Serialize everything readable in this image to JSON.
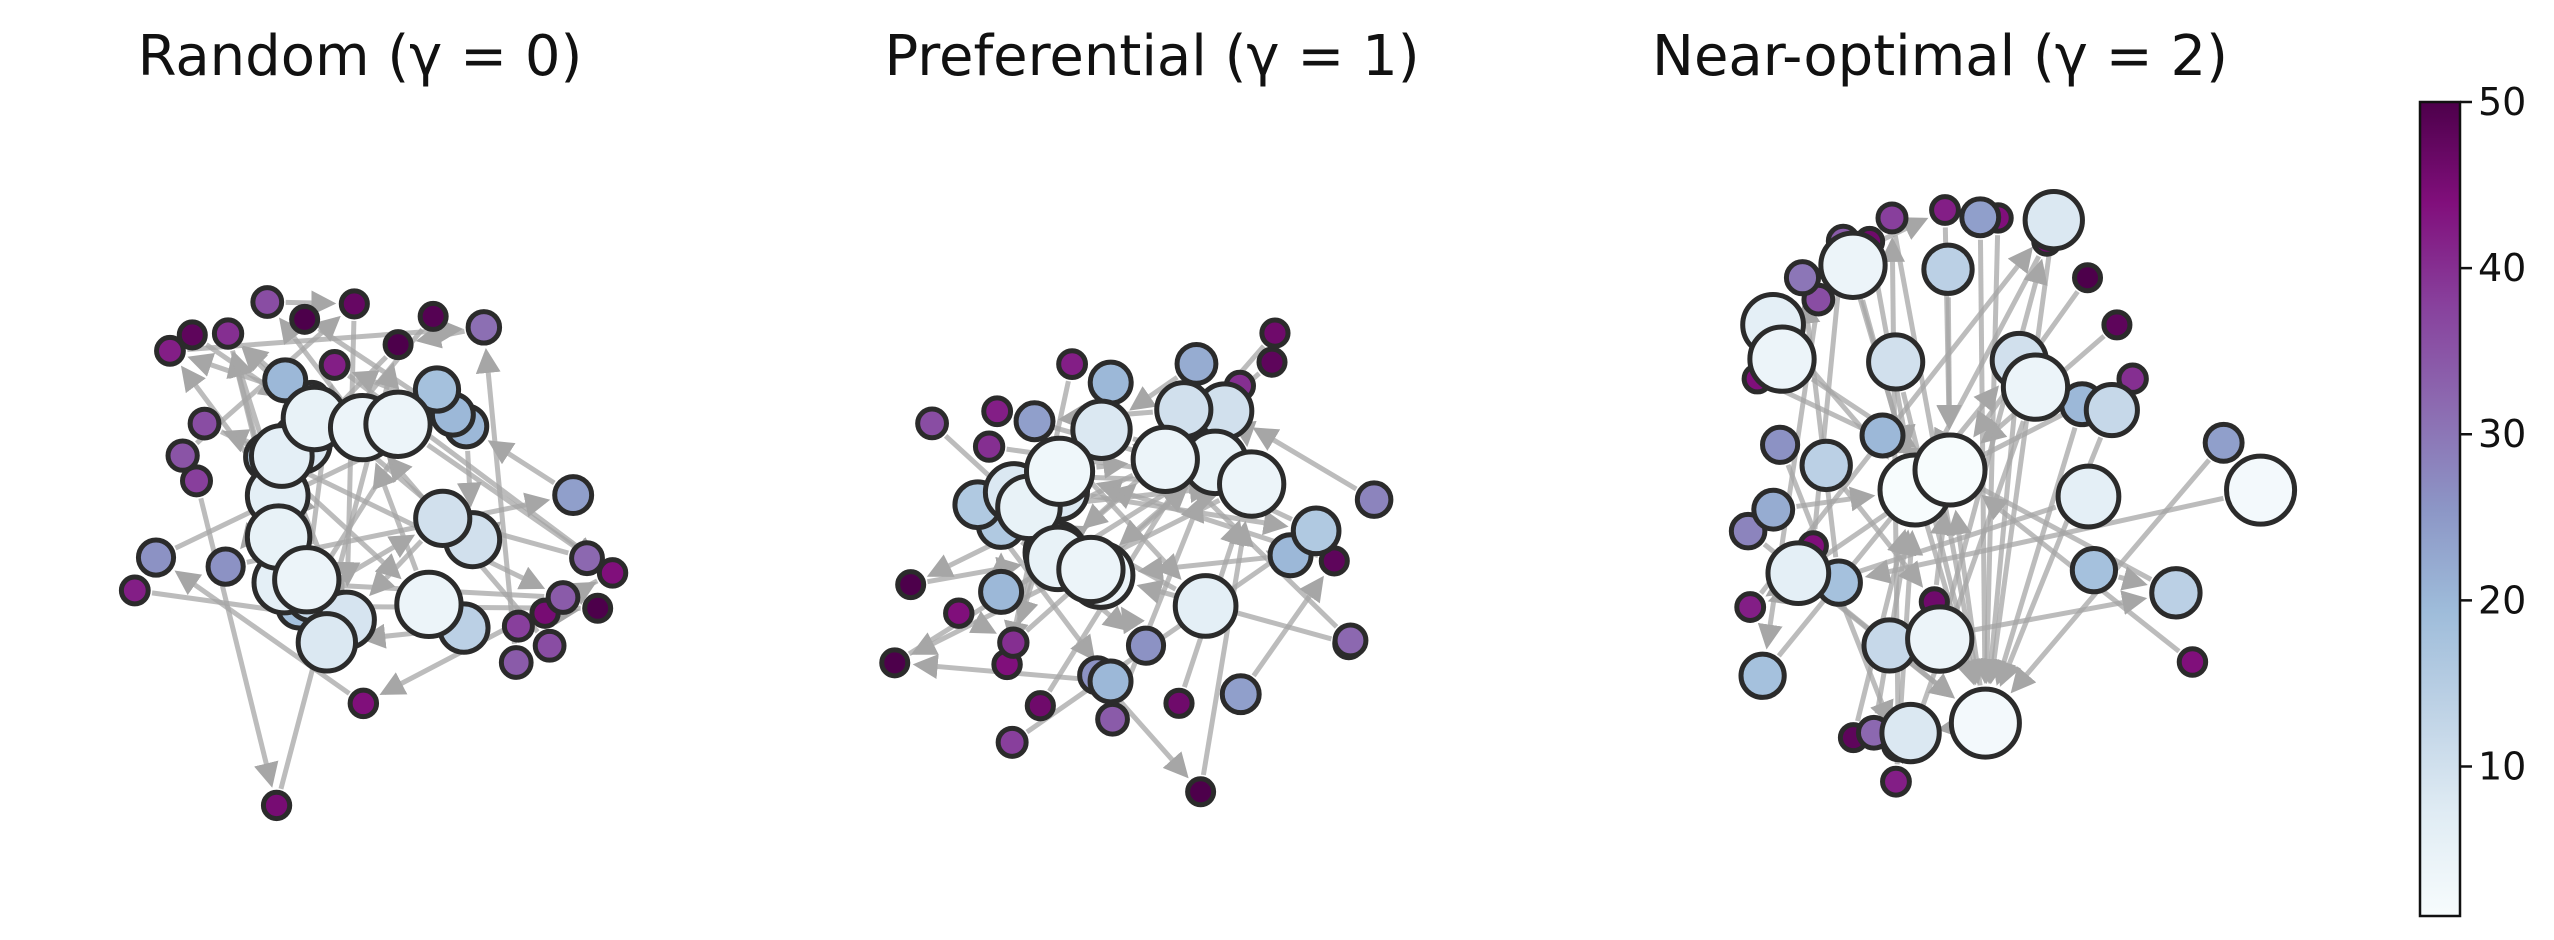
{
  "panels": [
    {
      "title": "Random (γ = 0)",
      "nodes": [
        {
          "v": 50
        },
        {
          "v": 47
        },
        {
          "v": 49
        },
        {
          "v": 44
        },
        {
          "v": 9
        },
        {
          "v": 36
        },
        {
          "v": 50
        },
        {
          "v": 4
        },
        {
          "v": 28
        },
        {
          "v": 31
        },
        {
          "v": 12
        },
        {
          "v": 26
        },
        {
          "v": 20
        },
        {
          "v": 6
        },
        {
          "v": 4
        },
        {
          "v": 42
        },
        {
          "v": 36
        },
        {
          "v": 4
        },
        {
          "v": 6
        },
        {
          "v": 8
        },
        {
          "v": 14
        },
        {
          "v": 34
        },
        {
          "v": 18
        },
        {
          "v": 24
        },
        {
          "v": 20
        },
        {
          "v": 5
        },
        {
          "v": 4
        },
        {
          "v": 8
        },
        {
          "v": 26
        },
        {
          "v": 44
        },
        {
          "v": 35
        },
        {
          "v": 16
        },
        {
          "v": 10
        },
        {
          "v": 32
        },
        {
          "v": 5
        },
        {
          "v": 6
        },
        {
          "v": 38
        },
        {
          "v": 48
        },
        {
          "v": 34
        },
        {
          "v": 20
        },
        {
          "v": 45
        },
        {
          "v": 40
        },
        {
          "v": 10
        },
        {
          "v": 42
        },
        {
          "v": 18
        },
        {
          "v": 45
        },
        {
          "v": 36
        },
        {
          "v": 42
        },
        {
          "v": 38
        },
        {
          "v": 50
        }
      ]
    },
    {
      "title": "Preferential (γ = 1)",
      "nodes": [
        {
          "v": 32
        },
        {
          "v": 20
        },
        {
          "v": 4
        },
        {
          "v": 44
        },
        {
          "v": 34
        },
        {
          "v": 28
        },
        {
          "v": 50
        },
        {
          "v": 40
        },
        {
          "v": 38
        },
        {
          "v": 8
        },
        {
          "v": 5
        },
        {
          "v": 20
        },
        {
          "v": 14
        },
        {
          "v": 38
        },
        {
          "v": 48
        },
        {
          "v": 8
        },
        {
          "v": 26
        },
        {
          "v": 3
        },
        {
          "v": 16
        },
        {
          "v": 6
        },
        {
          "v": 4
        },
        {
          "v": 46
        },
        {
          "v": 40
        },
        {
          "v": 10
        },
        {
          "v": 5
        },
        {
          "v": 4
        },
        {
          "v": 20
        },
        {
          "v": 22
        },
        {
          "v": 50
        },
        {
          "v": 16
        },
        {
          "v": 42
        },
        {
          "v": 24
        },
        {
          "v": 6
        },
        {
          "v": 16
        },
        {
          "v": 4
        },
        {
          "v": 36
        },
        {
          "v": 46
        },
        {
          "v": 8
        },
        {
          "v": 42
        },
        {
          "v": 5
        },
        {
          "v": 48
        },
        {
          "v": 14
        },
        {
          "v": 10
        },
        {
          "v": 24
        },
        {
          "v": 40
        },
        {
          "v": 44
        },
        {
          "v": 20
        },
        {
          "v": 50
        },
        {
          "v": 46
        },
        {
          "v": 26
        }
      ]
    },
    {
      "title": "Near-optimal (γ = 2)",
      "nodes": [
        {
          "v": 44
        },
        {
          "v": 6
        },
        {
          "v": 30
        },
        {
          "v": 34
        },
        {
          "v": 38
        },
        {
          "v": 42
        },
        {
          "v": 44
        },
        {
          "v": 46
        },
        {
          "v": 50
        },
        {
          "v": 48
        },
        {
          "v": 40
        },
        {
          "v": 28
        },
        {
          "v": 36
        },
        {
          "v": 18
        },
        {
          "v": 22
        },
        {
          "v": 32
        },
        {
          "v": 42
        },
        {
          "v": 4
        },
        {
          "v": 12
        },
        {
          "v": 24
        },
        {
          "v": 8
        },
        {
          "v": 1
        },
        {
          "v": 1
        },
        {
          "v": 46
        },
        {
          "v": 44
        },
        {
          "v": 34
        },
        {
          "v": 20
        },
        {
          "v": 46
        },
        {
          "v": 4
        },
        {
          "v": 42
        },
        {
          "v": 10
        },
        {
          "v": 18
        },
        {
          "v": 2
        },
        {
          "v": 44
        },
        {
          "v": 14
        },
        {
          "v": 6
        },
        {
          "v": 4
        },
        {
          "v": 20
        },
        {
          "v": 4
        },
        {
          "v": 10
        },
        {
          "v": 12
        },
        {
          "v": 18
        },
        {
          "v": 6
        },
        {
          "v": 8
        },
        {
          "v": 14
        },
        {
          "v": 48
        },
        {
          "v": 2
        },
        {
          "v": 14
        },
        {
          "v": 24
        },
        {
          "v": 26
        }
      ]
    }
  ],
  "colorbar": {
    "min": 1,
    "max": 50,
    "ticks": [
      {
        "value": 10,
        "label": "10"
      },
      {
        "value": 20,
        "label": "20"
      },
      {
        "value": 30,
        "label": "30"
      },
      {
        "value": 40,
        "label": "40"
      },
      {
        "value": 50,
        "label": "50"
      }
    ],
    "colormap": [
      "#f7fcfd",
      "#e0ecf4",
      "#bfd3e6",
      "#9ebcda",
      "#8c96c6",
      "#8c6bb1",
      "#88419d",
      "#810f7c",
      "#4d004b"
    ]
  },
  "colors": {
    "edge": "#a6a6a6",
    "node_outline": "#2b2b2b"
  }
}
